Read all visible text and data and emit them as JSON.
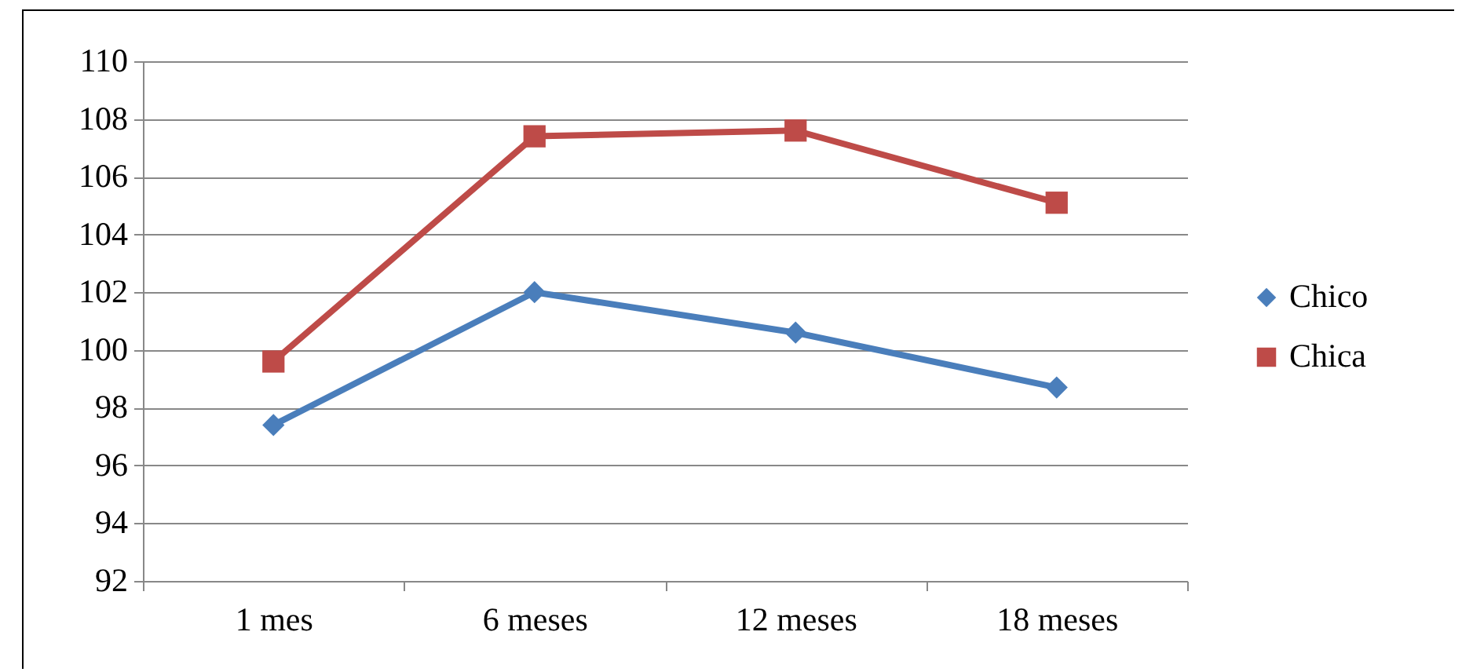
{
  "chart_data": {
    "type": "line",
    "categories": [
      "1 mes",
      "6 meses",
      "12 meses",
      "18 meses"
    ],
    "series": [
      {
        "name": "Chico",
        "color": "#4a7ebb",
        "marker": "diamond",
        "values": [
          97.4,
          102,
          100.6,
          98.7
        ]
      },
      {
        "name": "Chica",
        "color": "#be4b48",
        "marker": "square",
        "values": [
          99.6,
          107.4,
          107.6,
          105.1
        ]
      }
    ],
    "ylim": [
      92,
      110
    ],
    "yticks": [
      92,
      94,
      96,
      98,
      100,
      102,
      104,
      106,
      108,
      110
    ],
    "grid": "y",
    "legend": "right"
  }
}
